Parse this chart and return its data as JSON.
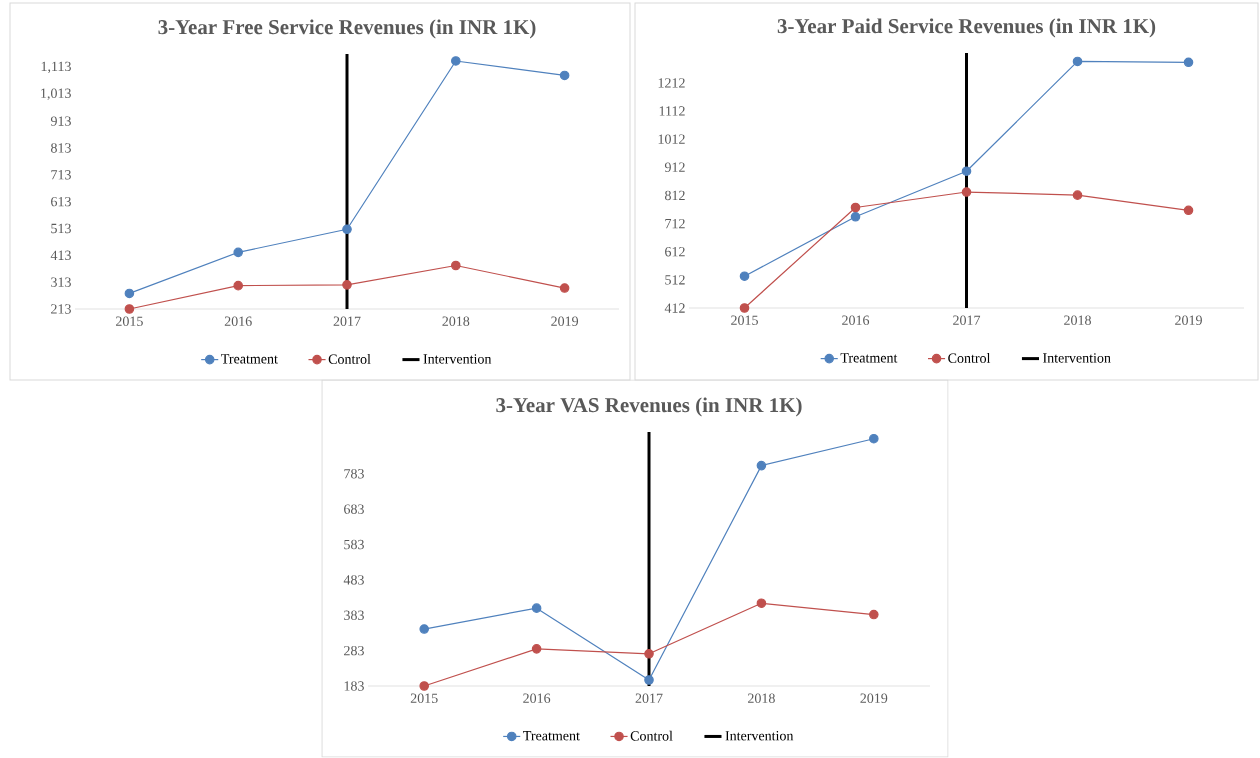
{
  "chart_data": [
    {
      "type": "line",
      "title": "3-Year Free Service Revenues (in INR 1K)",
      "x": [
        2015,
        2016,
        2017,
        2018,
        2019
      ],
      "xlim": [
        2014.5,
        2019.5
      ],
      "xticks": [
        2015,
        2016,
        2017,
        2018,
        2019
      ],
      "ylim": [
        213,
        1163
      ],
      "yticks": [
        213,
        313,
        413,
        513,
        613,
        713,
        813,
        913,
        {
          "value": 1013,
          "label": "1,013"
        },
        {
          "value": 1113,
          "label": "1,113"
        }
      ],
      "series": [
        {
          "name": "Treatment",
          "color": "#4f81bd",
          "values": [
            271,
            424,
            510,
            1137,
            1083
          ]
        },
        {
          "name": "Control",
          "color": "#c0504d",
          "values": [
            213,
            300,
            303,
            375,
            291
          ]
        }
      ],
      "ref_lines": [
        {
          "axis": "x",
          "value": 2017,
          "label": "Intervention",
          "color": "#000000"
        }
      ],
      "legend": "bottom",
      "marker": "circle"
    },
    {
      "type": "line",
      "title": "3-Year Paid Service Revenues (in INR 1K)",
      "x": [
        2015,
        2016,
        2017,
        2018,
        2019
      ],
      "xlim": [
        2014.5,
        2019.5
      ],
      "xticks": [
        2015,
        2016,
        2017,
        2018,
        2019
      ],
      "ylim": [
        412,
        1318
      ],
      "yticks": [
        412,
        512,
        612,
        712,
        812,
        912,
        1012,
        1112,
        1212
      ],
      "series": [
        {
          "name": "Treatment",
          "color": "#4f81bd",
          "values": [
            525,
            736,
            898,
            1288,
            1285
          ]
        },
        {
          "name": "Control",
          "color": "#c0504d",
          "values": [
            412,
            769,
            824,
            813,
            759
          ]
        }
      ],
      "ref_lines": [
        {
          "axis": "x",
          "value": 2017,
          "label": "Intervention",
          "color": "#000000"
        }
      ],
      "legend": "bottom",
      "marker": "circle"
    },
    {
      "type": "line",
      "title": "3-Year VAS Revenues (in INR 1K)",
      "x": [
        2015,
        2016,
        2017,
        2018,
        2019
      ],
      "xlim": [
        2014.5,
        2019.5
      ],
      "xticks": [
        2015,
        2016,
        2017,
        2018,
        2019
      ],
      "ylim": [
        183,
        901
      ],
      "yticks": [
        183,
        283,
        383,
        483,
        583,
        683,
        783
      ],
      "series": [
        {
          "name": "Treatment",
          "color": "#4f81bd",
          "values": [
            344,
            403,
            200,
            806,
            882
          ]
        },
        {
          "name": "Control",
          "color": "#c0504d",
          "values": [
            183,
            288,
            274,
            417,
            385
          ]
        }
      ],
      "ref_lines": [
        {
          "axis": "x",
          "value": 2017,
          "label": "Intervention",
          "color": "#000000"
        }
      ],
      "legend": "bottom",
      "marker": "circle"
    }
  ]
}
